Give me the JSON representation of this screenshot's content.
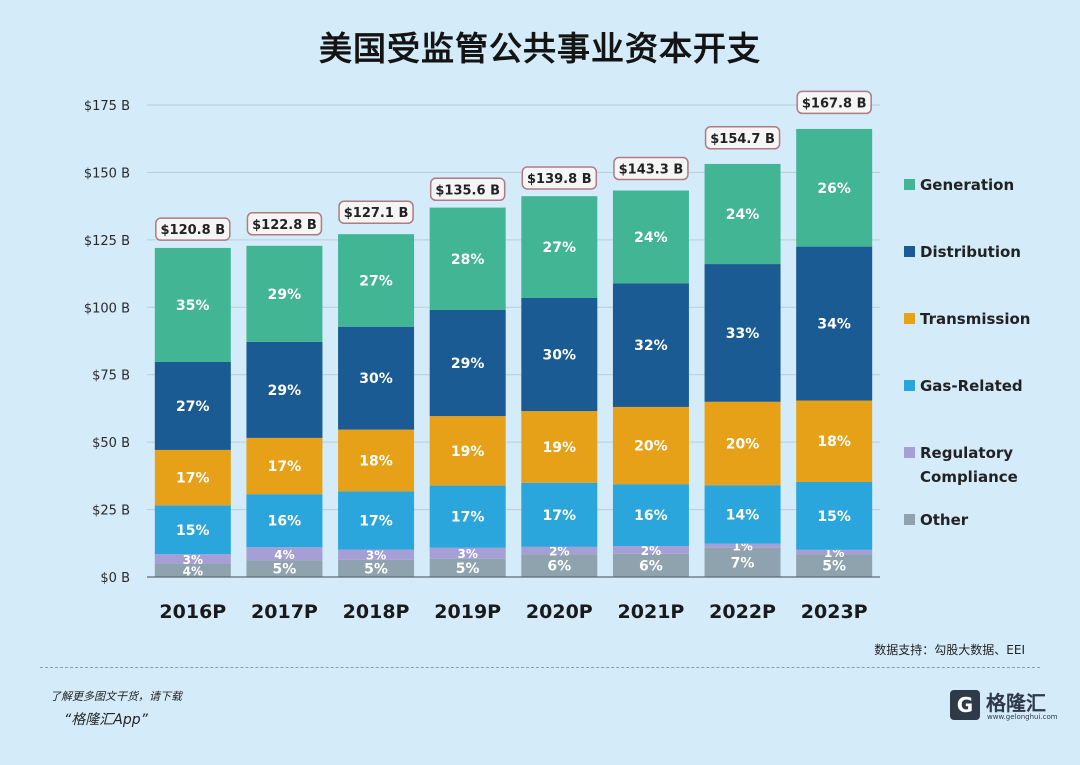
{
  "chart_data": {
    "type": "bar",
    "stacked": true,
    "title": "美国受监管公共事业资本开支",
    "categories": [
      "2016P",
      "2017P",
      "2018P",
      "2019P",
      "2020P",
      "2021P",
      "2022P",
      "2023P"
    ],
    "totals": [
      120.8,
      122.8,
      127.1,
      135.6,
      139.8,
      143.3,
      154.7,
      167.8
    ],
    "total_labels": [
      "$120.8 B",
      "$122.8 B",
      "$127.1 B",
      "$135.6 B",
      "$139.8 B",
      "$143.3 B",
      "$154.7 B",
      "$167.8 B"
    ],
    "ylim": [
      0,
      175
    ],
    "yticks": [
      0,
      25,
      50,
      75,
      100,
      125,
      150,
      175
    ],
    "ytick_labels": [
      "$0 B",
      "$25 B",
      "$50 B",
      "$75 B",
      "$100 B",
      "$125 B",
      "$150 B",
      "$175 B"
    ],
    "grid": true,
    "legend_position": "right",
    "series": [
      {
        "name": "Other",
        "color": "#8ea3ad",
        "percent": [
          4,
          5,
          5,
          5,
          6,
          6,
          7,
          5
        ]
      },
      {
        "name": "Regulatory Compliance",
        "color": "#a59fd6",
        "percent": [
          3,
          4,
          3,
          3,
          2,
          2,
          1,
          1
        ]
      },
      {
        "name": "Gas-Related",
        "color": "#2ba6dc",
        "percent": [
          15,
          16,
          17,
          17,
          17,
          16,
          14,
          15
        ]
      },
      {
        "name": "Transmission",
        "color": "#e6a118",
        "percent": [
          17,
          17,
          18,
          19,
          19,
          20,
          20,
          18
        ]
      },
      {
        "name": "Distribution",
        "color": "#1b5b93",
        "percent": [
          27,
          29,
          30,
          29,
          30,
          32,
          33,
          34
        ]
      },
      {
        "name": "Generation",
        "color": "#41b594",
        "percent": [
          35,
          29,
          27,
          28,
          27,
          24,
          24,
          26
        ]
      }
    ],
    "legend": [
      {
        "label": "Generation",
        "color": "#41b594"
      },
      {
        "label": "Distribution",
        "color": "#1b5b93"
      },
      {
        "label": "Transmission",
        "color": "#e6a118"
      },
      {
        "label": "Gas-Related",
        "color": "#2ba6dc"
      },
      {
        "label": "Regulatory\nCompliance",
        "color": "#a59fd6"
      },
      {
        "label": "Other",
        "color": "#8ea3ad"
      }
    ]
  },
  "source_note": "数据支持：勾股大数据、EEI",
  "footer": {
    "download_text": "了解更多图文干货，请下载",
    "app_name": "“格隆汇App”",
    "logo_letter": "G",
    "logo_text": "格隆汇",
    "logo_domain": "www.gelonghui.com"
  }
}
